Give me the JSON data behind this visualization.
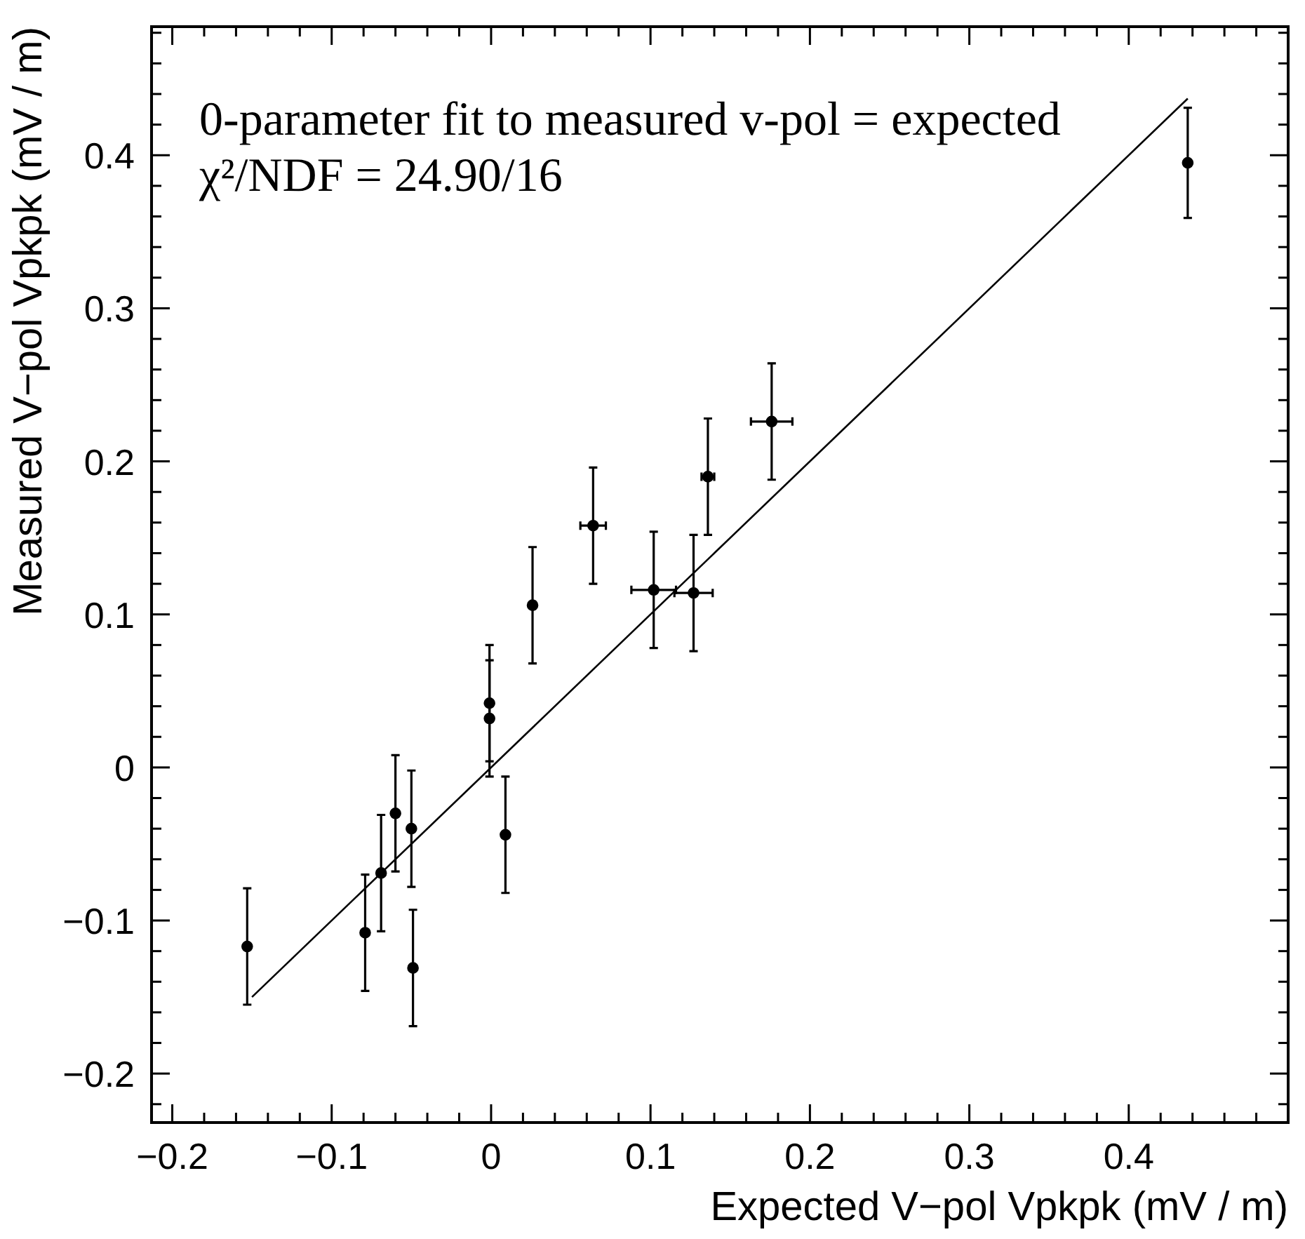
{
  "chart_data": {
    "type": "scatter",
    "xlabel": "Expected V−pol Vpkpk (mV / m)",
    "ylabel": "Measured V−pol Vpkpk (mV / m)",
    "annotations": [
      "0-parameter fit to measured v-pol = expected",
      "χ²/NDF = 24.90/16"
    ],
    "xlim": [
      -0.213,
      0.5
    ],
    "ylim": [
      -0.232,
      0.484
    ],
    "xticks": [
      {
        "value": -0.2,
        "label": "−0.2"
      },
      {
        "value": -0.18,
        "label": null
      },
      {
        "value": -0.16,
        "label": null
      },
      {
        "value": -0.14,
        "label": null
      },
      {
        "value": -0.12,
        "label": null
      },
      {
        "value": -0.1,
        "label": "−0.1"
      },
      {
        "value": -0.08,
        "label": null
      },
      {
        "value": -0.06,
        "label": null
      },
      {
        "value": -0.04,
        "label": null
      },
      {
        "value": -0.02,
        "label": null
      },
      0,
      {
        "value": 0.02,
        "label": null
      },
      {
        "value": 0.04,
        "label": null
      },
      {
        "value": 0.06,
        "label": null
      },
      {
        "value": 0.08,
        "label": null
      },
      0.1,
      {
        "value": 0.12,
        "label": null
      },
      {
        "value": 0.14,
        "label": null
      },
      {
        "value": 0.16,
        "label": null
      },
      {
        "value": 0.18,
        "label": null
      },
      0.2,
      {
        "value": 0.22,
        "label": null
      },
      {
        "value": 0.24,
        "label": null
      },
      {
        "value": 0.26,
        "label": null
      },
      {
        "value": 0.28,
        "label": null
      },
      0.3,
      {
        "value": 0.32,
        "label": null
      },
      {
        "value": 0.34,
        "label": null
      },
      {
        "value": 0.36,
        "label": null
      },
      {
        "value": 0.38,
        "label": null
      },
      0.4,
      {
        "value": 0.42,
        "label": null
      },
      {
        "value": 0.44,
        "label": null
      },
      {
        "value": 0.46,
        "label": null
      },
      {
        "value": 0.48,
        "label": null
      }
    ],
    "yticks": [
      {
        "value": -0.22,
        "label": null
      },
      {
        "value": -0.2,
        "label": "−0.2"
      },
      {
        "value": -0.18,
        "label": null
      },
      {
        "value": -0.16,
        "label": null
      },
      {
        "value": -0.14,
        "label": null
      },
      {
        "value": -0.12,
        "label": null
      },
      {
        "value": -0.1,
        "label": "−0.1"
      },
      {
        "value": -0.08,
        "label": null
      },
      {
        "value": -0.06,
        "label": null
      },
      {
        "value": -0.04,
        "label": null
      },
      {
        "value": -0.02,
        "label": null
      },
      0,
      {
        "value": 0.02,
        "label": null
      },
      {
        "value": 0.04,
        "label": null
      },
      {
        "value": 0.06,
        "label": null
      },
      {
        "value": 0.08,
        "label": null
      },
      0.1,
      {
        "value": 0.12,
        "label": null
      },
      {
        "value": 0.14,
        "label": null
      },
      {
        "value": 0.16,
        "label": null
      },
      {
        "value": 0.18,
        "label": null
      },
      0.2,
      {
        "value": 0.22,
        "label": null
      },
      {
        "value": 0.24,
        "label": null
      },
      {
        "value": 0.26,
        "label": null
      },
      {
        "value": 0.28,
        "label": null
      },
      0.3,
      {
        "value": 0.32,
        "label": null
      },
      {
        "value": 0.34,
        "label": null
      },
      {
        "value": 0.36,
        "label": null
      },
      {
        "value": 0.38,
        "label": null
      },
      0.4,
      {
        "value": 0.42,
        "label": null
      },
      {
        "value": 0.44,
        "label": null
      },
      {
        "value": 0.46,
        "label": null
      },
      {
        "value": 0.48,
        "label": null
      }
    ],
    "series": [
      {
        "type": "scatter",
        "color": "#000000",
        "marker": "circle",
        "x": [
          -0.153,
          -0.079,
          -0.069,
          -0.06,
          -0.05,
          -0.049,
          -0.001,
          -0.001,
          0.009,
          0.026,
          0.064,
          0.102,
          0.127,
          0.136,
          0.176,
          0.437
        ],
        "values": [
          -0.117,
          -0.108,
          -0.069,
          -0.03,
          -0.04,
          -0.131,
          0.042,
          0.032,
          -0.044,
          0.106,
          0.158,
          0.116,
          0.114,
          0.19,
          0.226,
          0.395
        ],
        "errors": [
          0.038,
          0.038,
          0.038,
          0.038,
          0.038,
          0.038,
          0.038,
          0.038,
          0.038,
          0.038,
          0.038,
          0.038,
          0.038,
          0.038,
          0.038,
          0.036
        ],
        "xerrors": [
          null,
          null,
          null,
          null,
          null,
          null,
          null,
          null,
          null,
          null,
          0.008,
          0.014,
          0.012,
          0.004,
          0.013,
          null
        ]
      },
      {
        "type": "line",
        "color": "#000000",
        "marker": "none",
        "x": [
          -0.15,
          0.437
        ],
        "values": [
          -0.15,
          0.437
        ]
      }
    ]
  }
}
